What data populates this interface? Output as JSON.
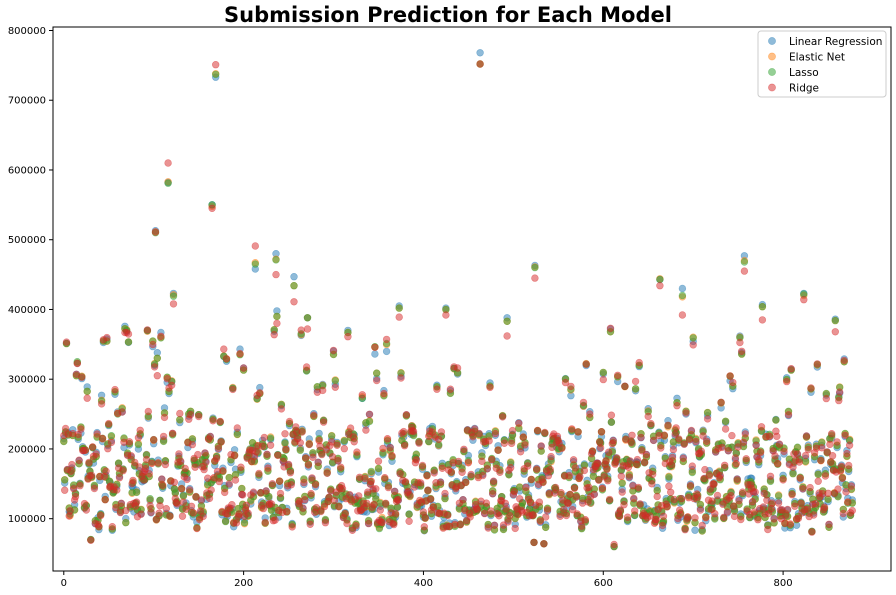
{
  "chart_data": {
    "type": "scatter",
    "title": "Submission Prediction for Each Model",
    "xlabel": "",
    "ylabel": "",
    "xlim": [
      -12,
      920
    ],
    "ylim": [
      25000,
      805000
    ],
    "x_ticks": [
      0,
      200,
      400,
      600,
      800
    ],
    "y_ticks": [
      100000,
      200000,
      300000,
      400000,
      500000,
      600000,
      700000,
      800000
    ],
    "x_tick_labels": [
      "0",
      "200",
      "400",
      "600",
      "800"
    ],
    "y_tick_labels": [
      "100000",
      "200000",
      "300000",
      "400000",
      "500000",
      "600000",
      "700000",
      "800000"
    ],
    "grid": false,
    "legend_position": "top-right",
    "n_points": 878,
    "series": [
      {
        "name": "Linear Regression",
        "color": "#1f77b4",
        "alpha": 0.5
      },
      {
        "name": "Elastic Net",
        "color": "#ff7f0e",
        "alpha": 0.5
      },
      {
        "name": "Lasso",
        "color": "#2ca02c",
        "alpha": 0.5
      },
      {
        "name": "Ridge",
        "color": "#d62728",
        "alpha": 0.5
      }
    ],
    "notable_points": [
      {
        "x": 463,
        "values": [
          768000,
          752000,
          752000,
          752000
        ]
      },
      {
        "x": 169,
        "values": [
          733000,
          738000,
          737000,
          751000
        ]
      },
      {
        "x": 116,
        "values": [
          582000,
          583000,
          581000,
          610000
        ]
      },
      {
        "x": 165,
        "values": [
          550000,
          548000,
          550000,
          545000
        ]
      },
      {
        "x": 102,
        "values": [
          513000,
          511000,
          510000,
          511000
        ]
      },
      {
        "x": 213,
        "values": [
          458000,
          467000,
          465000,
          491000
        ]
      },
      {
        "x": 236,
        "values": [
          480000,
          472000,
          471000,
          450000
        ]
      },
      {
        "x": 256,
        "values": [
          447000,
          434000,
          434000,
          411000
        ]
      },
      {
        "x": 524,
        "values": [
          463000,
          461000,
          460000,
          445000
        ]
      },
      {
        "x": 757,
        "values": [
          477000,
          470000,
          468000,
          455000
        ]
      },
      {
        "x": 663,
        "values": [
          443000,
          444000,
          443000,
          434000
        ]
      },
      {
        "x": 688,
        "values": [
          430000,
          418000,
          420000,
          392000
        ]
      },
      {
        "x": 823,
        "values": [
          423000,
          420000,
          422000,
          414000
        ]
      },
      {
        "x": 122,
        "values": [
          423000,
          421000,
          419000,
          408000
        ]
      },
      {
        "x": 425,
        "values": [
          402000,
          400000,
          400000,
          392000
        ]
      },
      {
        "x": 373,
        "values": [
          405000,
          402000,
          402000,
          389000
        ]
      },
      {
        "x": 777,
        "values": [
          407000,
          404000,
          404000,
          385000
        ]
      },
      {
        "x": 858,
        "values": [
          386000,
          384000,
          384000,
          368000
        ]
      },
      {
        "x": 493,
        "values": [
          388000,
          383000,
          383000,
          362000
        ]
      },
      {
        "x": 237,
        "values": [
          398000,
          390000,
          390000,
          380000
        ]
      },
      {
        "x": 271,
        "values": [
          388000,
          388000,
          388000,
          372000
        ]
      },
      {
        "x": 70,
        "values": [
          369000,
          371000,
          370000,
          367000
        ]
      },
      {
        "x": 608,
        "values": [
          372000,
          368000,
          368000,
          373000
        ]
      },
      {
        "x": 316,
        "values": [
          370000,
          367000,
          367000,
          361000
        ]
      },
      {
        "x": 104,
        "values": [
          338000,
          330000,
          330000,
          305000
        ]
      },
      {
        "x": 868,
        "values": [
          329000,
          325000,
          325000,
          327000
        ]
      },
      {
        "x": 754,
        "values": [
          338000,
          336000,
          336000,
          340000
        ]
      },
      {
        "x": 14,
        "values": [
          307000,
          305000,
          305000,
          307000
        ]
      },
      {
        "x": 200,
        "values": [
          316000,
          313000,
          313000,
          316000
        ]
      },
      {
        "x": 809,
        "values": [
          314000,
          313000,
          313000,
          315000
        ]
      },
      {
        "x": 30,
        "values": [
          70000,
          70000,
          70000,
          69000
        ]
      },
      {
        "x": 612,
        "values": [
          60000,
          60000,
          60000,
          63000
        ]
      },
      {
        "x": 534,
        "values": [
          64000,
          64000,
          64000,
          64000
        ]
      },
      {
        "x": 523,
        "values": [
          66000,
          66000,
          66000,
          66000
        ]
      }
    ],
    "bulk_distribution": "majority of predictions between 80000 and 260000 for x = 0..878, with a dense band around 100000-200000"
  }
}
